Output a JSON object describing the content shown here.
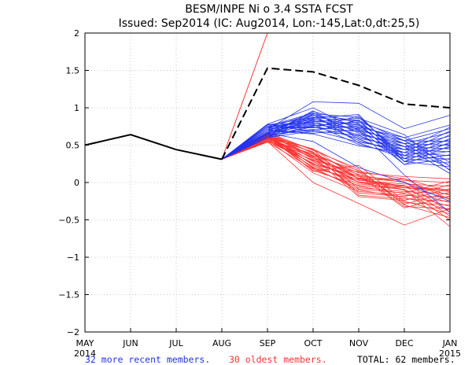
{
  "chart_data": {
    "type": "line",
    "title": "BESM/INPE Ni o 3.4 SSTA FCST",
    "subtitle": "Issued: Sep2014 (IC: Aug2014, Lon:-145,Lat:0,dt:25,5)",
    "categories": [
      "MAY",
      "JUN",
      "JUL",
      "AUG",
      "SEP",
      "OCT",
      "NOV",
      "DEC",
      "JAN"
    ],
    "x_year_labels": {
      "MAY": "2014",
      "JAN": "2015"
    },
    "yticks": [
      "2",
      "1.5",
      "1",
      "0.5",
      "0",
      "-0.5",
      "-1",
      "-1.5",
      "-2"
    ],
    "ylim": [
      -2,
      2
    ],
    "grid": true,
    "observed": {
      "name": "observed",
      "color": "#000000",
      "values": [
        0.5,
        0.64,
        0.44,
        0.31
      ]
    },
    "ensemble_mean": {
      "name": "ensemble mean (dashed)",
      "color": "#000000",
      "values": [
        0.31,
        1.53,
        1.48,
        1.3,
        1.05,
        1.0
      ]
    },
    "red_outlier": {
      "name": "outlier member",
      "color": "#ff3333",
      "values": [
        0.31,
        2.0
      ]
    },
    "legend": {
      "recent": {
        "text": "32 more recent members.",
        "color": "#2233ee"
      },
      "oldest": {
        "text": "30 oldest members.",
        "color": "#ff3333"
      },
      "total": {
        "text": "TOTAL: 62 members.",
        "color": "#000000"
      }
    },
    "blue_members": [
      [
        0.31,
        0.62,
        0.9,
        0.83,
        0.56,
        0.55
      ],
      [
        0.31,
        0.66,
        0.84,
        0.78,
        0.52,
        0.5
      ],
      [
        0.31,
        0.71,
        0.79,
        0.73,
        0.48,
        0.45
      ],
      [
        0.31,
        0.75,
        0.74,
        0.68,
        0.44,
        0.41
      ],
      [
        0.31,
        0.6,
        0.69,
        0.63,
        0.4,
        0.36
      ],
      [
        0.31,
        0.64,
        0.96,
        0.58,
        0.36,
        0.31
      ],
      [
        0.31,
        0.69,
        0.91,
        0.53,
        0.32,
        0.26
      ],
      [
        0.31,
        0.73,
        0.86,
        0.91,
        0.28,
        0.21
      ],
      [
        0.31,
        0.77,
        0.81,
        0.86,
        0.64,
        0.16
      ],
      [
        0.31,
        0.62,
        0.76,
        0.81,
        0.6,
        0.77
      ],
      [
        0.31,
        0.67,
        0.71,
        0.76,
        0.56,
        0.72
      ],
      [
        0.31,
        0.71,
        0.66,
        0.71,
        0.52,
        0.67
      ],
      [
        0.31,
        0.75,
        0.93,
        0.66,
        0.48,
        0.62
      ],
      [
        0.31,
        0.6,
        0.88,
        0.61,
        0.44,
        0.57
      ],
      [
        0.31,
        0.65,
        0.83,
        0.56,
        0.4,
        0.52
      ],
      [
        0.31,
        0.69,
        0.78,
        0.51,
        0.36,
        0.47
      ],
      [
        0.31,
        0.73,
        0.73,
        0.89,
        0.32,
        0.42
      ],
      [
        0.31,
        0.78,
        0.68,
        0.84,
        0.28,
        0.37
      ],
      [
        0.31,
        0.62,
        0.95,
        0.79,
        0.24,
        0.32
      ],
      [
        0.31,
        0.67,
        0.9,
        0.74,
        0.6,
        0.27
      ],
      [
        0.31,
        0.71,
        0.85,
        0.69,
        0.56,
        0.22
      ],
      [
        0.31,
        0.75,
        0.8,
        0.64,
        0.52,
        0.17
      ],
      [
        0.31,
        0.6,
        0.75,
        0.59,
        0.48,
        0.12
      ],
      [
        0.31,
        0.64,
        0.7,
        0.54,
        0.44,
        0.74
      ],
      [
        0.31,
        0.69,
        0.65,
        0.49,
        0.4,
        0.69
      ],
      [
        0.31,
        0.73,
        0.92,
        0.87,
        0.36,
        0.64
      ],
      [
        0.31,
        0.77,
        0.87,
        0.82,
        0.32,
        0.59
      ],
      [
        0.31,
        0.62,
        0.82,
        0.77,
        0.28,
        0.54
      ],
      [
        0.31,
        0.66,
        0.77,
        0.72,
        0.24,
        0.49
      ],
      [
        0.31,
        0.71,
        1.08,
        1.06,
        0.72,
        0.9
      ],
      [
        0.31,
        0.78,
        1.0,
        0.7,
        0.1,
        -0.4
      ],
      [
        0.31,
        0.66,
        0.55,
        0.2,
        0.0,
        -0.25
      ]
    ],
    "red_members": [
      [
        0.31,
        0.6,
        0.45,
        0.15,
        0.05,
        -0.12
      ],
      [
        0.31,
        0.63,
        0.4,
        0.1,
        0.0,
        -0.17
      ],
      [
        0.31,
        0.66,
        0.35,
        0.05,
        -0.05,
        -0.22
      ],
      [
        0.31,
        0.55,
        0.3,
        0.0,
        -0.1,
        -0.27
      ],
      [
        0.31,
        0.58,
        0.25,
        -0.05,
        -0.15,
        -0.32
      ],
      [
        0.31,
        0.61,
        0.2,
        -0.1,
        -0.2,
        -0.37
      ],
      [
        0.31,
        0.64,
        0.15,
        0.23,
        -0.25,
        -0.42
      ],
      [
        0.31,
        0.67,
        0.43,
        0.18,
        -0.3,
        -0.47
      ],
      [
        0.31,
        0.56,
        0.38,
        0.13,
        0.08,
        0.05
      ],
      [
        0.31,
        0.59,
        0.33,
        0.08,
        0.03,
        0.0
      ],
      [
        0.31,
        0.62,
        0.28,
        0.03,
        -0.02,
        -0.05
      ],
      [
        0.31,
        0.65,
        0.23,
        -0.02,
        -0.07,
        -0.1
      ],
      [
        0.31,
        0.54,
        0.18,
        -0.07,
        -0.12,
        -0.15
      ],
      [
        0.31,
        0.57,
        0.13,
        -0.12,
        -0.17,
        -0.2
      ],
      [
        0.31,
        0.6,
        0.41,
        -0.17,
        -0.22,
        -0.25
      ],
      [
        0.31,
        0.63,
        0.36,
        0.16,
        -0.27,
        -0.3
      ],
      [
        0.31,
        0.66,
        0.31,
        0.11,
        -0.32,
        -0.35
      ],
      [
        0.31,
        0.55,
        0.26,
        0.06,
        0.01,
        -0.4
      ],
      [
        0.31,
        0.58,
        0.21,
        0.01,
        -0.04,
        -0.45
      ],
      [
        0.31,
        0.61,
        0.16,
        -0.04,
        -0.09,
        -0.5
      ],
      [
        0.31,
        0.64,
        0.44,
        -0.09,
        -0.14,
        0.02
      ],
      [
        0.31,
        0.67,
        0.39,
        -0.14,
        -0.19,
        -0.03
      ],
      [
        0.31,
        0.56,
        0.34,
        -0.19,
        -0.24,
        -0.08
      ],
      [
        0.31,
        0.59,
        0.29,
        0.14,
        -0.29,
        -0.13
      ],
      [
        0.31,
        0.62,
        0.24,
        0.09,
        -0.34,
        -0.18
      ],
      [
        0.31,
        0.65,
        0.19,
        0.04,
        0.05,
        -0.23
      ],
      [
        0.31,
        0.55,
        0.0,
        -0.28,
        -0.57,
        -0.35
      ],
      [
        0.31,
        0.62,
        0.45,
        0.05,
        -0.1,
        -0.59
      ],
      [
        0.31,
        0.6,
        0.35,
        0.0,
        -0.05,
        -0.1
      ],
      [
        0.31,
        0.58,
        0.38,
        0.05,
        -0.07,
        -0.12
      ]
    ]
  }
}
